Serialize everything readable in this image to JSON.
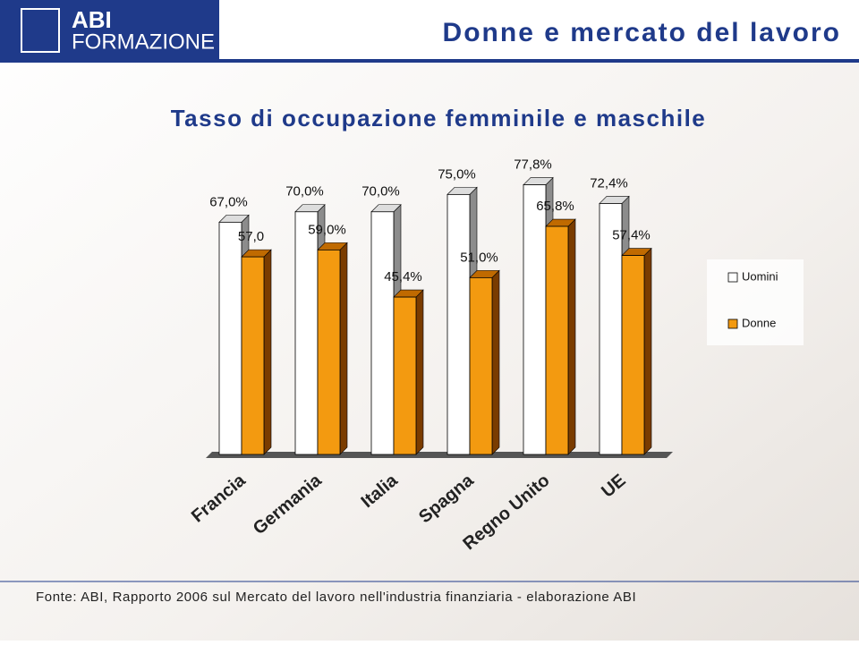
{
  "header": {
    "logo_top": "ABI",
    "logo_bottom": "FORMAZIONE",
    "title": "Donne e mercato del lavoro"
  },
  "chart_data": {
    "type": "bar3d",
    "title": "Tasso di occupazione femminile e maschile",
    "categories": [
      "Francia",
      "Germania",
      "Italia",
      "Spagna",
      "Regno Unito",
      "UE"
    ],
    "series": [
      {
        "name": "Uomini",
        "color": "#ffffff",
        "values": [
          67.0,
          70.0,
          70.0,
          75.0,
          77.8,
          72.4
        ],
        "value_labels": [
          "67,0%",
          "70,0%",
          "70,0%",
          "75,0%",
          "77,8%",
          "72,4%"
        ]
      },
      {
        "name": "Donne",
        "color": "#f39a10",
        "values": [
          57.0,
          59.0,
          45.4,
          51.0,
          65.8,
          57.4
        ],
        "value_labels": [
          "57,0",
          "59,0%",
          "45,4%",
          "51,0%",
          "65,8%",
          "57,4%"
        ]
      }
    ],
    "ylim": [
      0,
      80
    ]
  },
  "footer": {
    "source": "Fonte: ABI, Rapporto 2006 sul Mercato del lavoro nell'industria finanziaria - elaborazione ABI"
  }
}
